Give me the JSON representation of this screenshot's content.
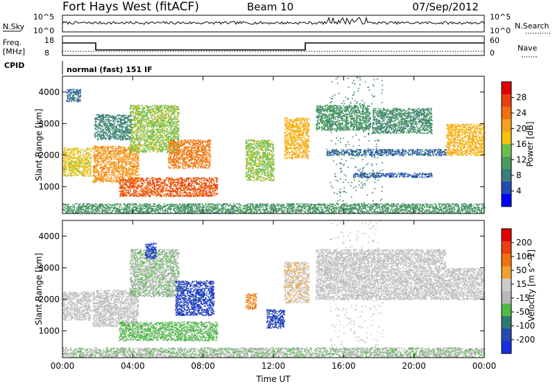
{
  "header": {
    "station": "Fort Hays West (fitACF)",
    "beam": "Beam 10",
    "date": "07/Sep/2012"
  },
  "noise_panel": {
    "left_label": "N.Sky",
    "right_label": "N.Search",
    "left_ticks": [
      "10^5",
      "10^0"
    ],
    "right_ticks": [
      "10^5",
      "10^0"
    ]
  },
  "freq_panel": {
    "left_label_line1": "Freq.",
    "left_label_line2": "[MHz]",
    "right_label": "Nave",
    "left_ticks": [
      "18",
      "8"
    ],
    "right_ticks": [
      "60",
      "0"
    ]
  },
  "cpid_panel": {
    "label": "CPID",
    "text": "normal (fast) 151 IF"
  },
  "colors": {
    "power_scale": [
      "#0000ff",
      "#234bb4",
      "#3a7d7d",
      "#4a9b5a",
      "#6fbf4f",
      "#f5c010",
      "#f5a020",
      "#f07010",
      "#e84010",
      "#e00000"
    ],
    "velocity_scale": [
      "#1a2ee0",
      "#244ab0",
      "#2e7a70",
      "#52b848",
      "#b8b8b8",
      "#cccccc",
      "#f0a030",
      "#f07010",
      "#e84010",
      "#e00000"
    ]
  },
  "chart_data": [
    {
      "type": "heatmap",
      "name": "power-panel",
      "title": "",
      "xlabel": "",
      "ylabel": "Slant Range [km]",
      "xlim": [
        0,
        24
      ],
      "ylim": [
        150,
        4500
      ],
      "x_ticks": [
        "00:00",
        "04:00",
        "08:00",
        "12:00",
        "16:00",
        "20:00",
        "00:00"
      ],
      "y_ticks": [
        1000,
        2000,
        3000,
        4000
      ],
      "colorbar": {
        "label": "Power [dB]",
        "ticks": [
          "28",
          "24",
          "20",
          "16",
          "12",
          "8",
          "4"
        ],
        "range": [
          0,
          30
        ]
      },
      "features": [
        {
          "t0": 0.0,
          "t1": 1.6,
          "r0": 1350,
          "r1": 2250,
          "value": 16
        },
        {
          "t0": 1.7,
          "t1": 4.3,
          "r0": 1150,
          "r1": 2300,
          "value": 20
        },
        {
          "t0": 3.8,
          "t1": 6.6,
          "r0": 2100,
          "r1": 3600,
          "value": 14
        },
        {
          "t0": 1.8,
          "t1": 3.9,
          "r0": 2500,
          "r1": 3300,
          "value": 8
        },
        {
          "t0": 0.2,
          "t1": 1.0,
          "r0": 3700,
          "r1": 4100,
          "value": 6
        },
        {
          "t0": 6.0,
          "t1": 8.4,
          "r0": 1600,
          "r1": 2500,
          "value": 22
        },
        {
          "t0": 3.2,
          "t1": 8.8,
          "r0": 700,
          "r1": 1300,
          "value": 24
        },
        {
          "t0": 0.0,
          "t1": 24.0,
          "r0": 180,
          "r1": 480,
          "value": 10
        },
        {
          "t0": 10.4,
          "t1": 12.0,
          "r0": 1200,
          "r1": 2500,
          "value": 14
        },
        {
          "t0": 12.6,
          "t1": 14.0,
          "r0": 1900,
          "r1": 3200,
          "value": 18
        },
        {
          "t0": 14.4,
          "t1": 17.5,
          "r0": 2800,
          "r1": 3600,
          "value": 10
        },
        {
          "t0": 15.0,
          "t1": 21.8,
          "r0": 2000,
          "r1": 2200,
          "value": 6
        },
        {
          "t0": 16.5,
          "t1": 21.0,
          "r0": 1300,
          "r1": 1450,
          "value": 5
        },
        {
          "t0": 17.6,
          "t1": 21.0,
          "r0": 2700,
          "r1": 3500,
          "value": 9
        },
        {
          "t0": 21.8,
          "t1": 24.0,
          "r0": 2000,
          "r1": 3000,
          "value": 18
        },
        {
          "t0": 15.2,
          "t1": 18.2,
          "r0": 200,
          "r1": 4500,
          "value": 8
        }
      ]
    },
    {
      "type": "heatmap",
      "name": "velocity-panel",
      "title": "",
      "xlabel": "Time UT",
      "ylabel": "Slant Range [km]",
      "xlim": [
        0,
        24
      ],
      "ylim": [
        150,
        4500
      ],
      "x_ticks": [
        "00:00",
        "04:00",
        "08:00",
        "12:00",
        "16:00",
        "20:00",
        "00:00"
      ],
      "y_ticks": [
        1000,
        2000,
        3000,
        4000
      ],
      "colorbar": {
        "label": "Velocity [m s^-1]",
        "ticks": [
          "200",
          "100",
          "50",
          "15",
          "-15",
          "-50",
          "-100",
          "-200"
        ],
        "range": [
          -250,
          250
        ]
      },
      "features": [
        {
          "t0": 0.0,
          "t1": 1.6,
          "r0": 1350,
          "r1": 2250,
          "value": 0
        },
        {
          "t0": 1.7,
          "t1": 4.3,
          "r0": 1150,
          "r1": 2300,
          "value": 0
        },
        {
          "t0": 3.8,
          "t1": 6.6,
          "r0": 2100,
          "r1": 3600,
          "value": -40
        },
        {
          "t0": 4.7,
          "t1": 5.3,
          "r0": 3300,
          "r1": 3800,
          "value": -200
        },
        {
          "t0": 6.4,
          "t1": 8.6,
          "r0": 1500,
          "r1": 2600,
          "value": -190
        },
        {
          "t0": 3.2,
          "t1": 8.8,
          "r0": 700,
          "r1": 1300,
          "value": -70
        },
        {
          "t0": 0.0,
          "t1": 24.0,
          "r0": 180,
          "r1": 480,
          "value": -40
        },
        {
          "t0": 10.4,
          "t1": 11.0,
          "r0": 1700,
          "r1": 2200,
          "value": 100
        },
        {
          "t0": 11.6,
          "t1": 12.6,
          "r0": 1100,
          "r1": 1700,
          "value": -180
        },
        {
          "t0": 12.6,
          "t1": 14.0,
          "r0": 1900,
          "r1": 3200,
          "value": 40
        },
        {
          "t0": 14.4,
          "t1": 21.8,
          "r0": 2000,
          "r1": 3600,
          "value": 0
        },
        {
          "t0": 21.8,
          "t1": 24.0,
          "r0": 2000,
          "r1": 3000,
          "value": 0
        },
        {
          "t0": 15.2,
          "t1": 18.2,
          "r0": 200,
          "r1": 4500,
          "value": 0
        }
      ]
    }
  ]
}
